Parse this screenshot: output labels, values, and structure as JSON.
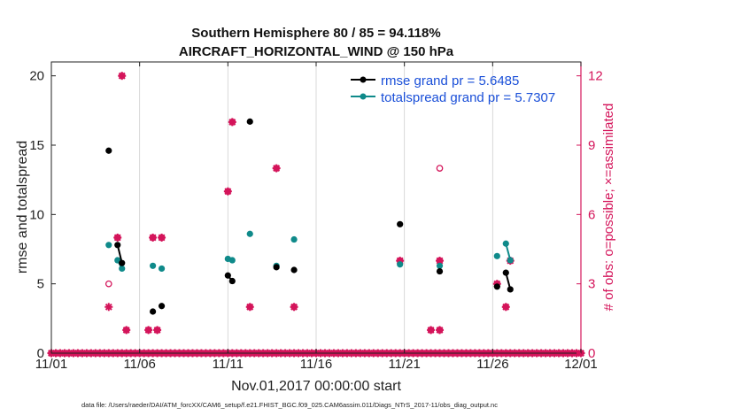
{
  "chart_data": {
    "type": "line",
    "title": [
      "Southern Hemisphere 80 / 85 = 94.118%",
      "AIRCRAFT_HORIZONTAL_WIND @ 150 hPa"
    ],
    "xlabel": "Nov.01,2017 00:00:00 start",
    "ylabel": "rmse and totalspread",
    "y2label": "# of obs: o=possible; ×=assimilated",
    "xlim": [
      0,
      30
    ],
    "ylim": [
      0,
      21
    ],
    "y2lim": [
      0,
      12.6
    ],
    "x_tick_values": [
      0,
      5,
      10,
      15,
      20,
      25,
      30
    ],
    "x_tick_labels": [
      "11/01",
      "11/06",
      "11/11",
      "11/16",
      "11/21",
      "11/26",
      "12/01"
    ],
    "y_ticks": [
      0,
      5,
      10,
      15,
      20
    ],
    "y2_ticks": [
      0,
      3,
      6,
      9,
      12
    ],
    "grid_x": true,
    "legend": {
      "placement": "top-right",
      "entries": [
        "rmse grand pr = 5.6485",
        "totalspread grand pr = 5.7307"
      ]
    },
    "footer": "data file: /Users/raeder/DAI/ATM_forcXX/CAM6_setup/f.e21.FHIST_BGC.f09_025.CAM6assim.011/Diags_NTrS_2017-11/obs_diag_output.nc",
    "colors": {
      "rmse": "#000000",
      "spread": "#0f8a8a",
      "obs": "#d4145a"
    },
    "series": [
      {
        "name": "rmse",
        "segments": [
          [
            [
              3.25,
              14.6
            ]
          ],
          [
            [
              3.75,
              7.8
            ],
            [
              4.0,
              6.5
            ]
          ],
          [
            [
              5.75,
              3.0
            ]
          ],
          [
            [
              6.25,
              3.4
            ]
          ],
          [
            [
              10.0,
              5.6
            ],
            [
              10.25,
              5.2
            ]
          ],
          [
            [
              11.25,
              16.7
            ]
          ],
          [
            [
              12.75,
              6.2
            ]
          ],
          [
            [
              13.75,
              6.0
            ]
          ],
          [
            [
              19.75,
              9.3
            ]
          ],
          [
            [
              22.0,
              5.9
            ]
          ],
          [
            [
              25.25,
              4.8
            ]
          ],
          [
            [
              25.75,
              5.8
            ],
            [
              26.0,
              4.6
            ]
          ]
        ]
      },
      {
        "name": "totalspread",
        "segments": [
          [
            [
              3.25,
              7.8
            ]
          ],
          [
            [
              3.75,
              6.7
            ],
            [
              4.0,
              6.1
            ]
          ],
          [
            [
              5.75,
              6.3
            ]
          ],
          [
            [
              6.25,
              6.1
            ]
          ],
          [
            [
              10.0,
              6.8
            ],
            [
              10.25,
              6.7
            ]
          ],
          [
            [
              11.25,
              8.6
            ]
          ],
          [
            [
              12.75,
              6.3
            ]
          ],
          [
            [
              13.75,
              8.2
            ]
          ],
          [
            [
              19.75,
              6.4
            ]
          ],
          [
            [
              22.0,
              6.3
            ]
          ],
          [
            [
              25.25,
              7.0
            ]
          ],
          [
            [
              25.75,
              7.9
            ],
            [
              26.0,
              6.7
            ]
          ]
        ]
      }
    ],
    "obs_possible": [
      [
        3.25,
        3
      ],
      [
        3.75,
        5
      ],
      [
        4.0,
        12
      ],
      [
        4.25,
        1
      ],
      [
        5.5,
        1
      ],
      [
        5.75,
        5
      ],
      [
        6.0,
        1
      ],
      [
        6.25,
        5
      ],
      [
        10.0,
        7
      ],
      [
        10.25,
        10
      ],
      [
        11.25,
        2
      ],
      [
        12.75,
        8
      ],
      [
        13.75,
        2
      ],
      [
        19.75,
        4
      ],
      [
        21.5,
        1
      ],
      [
        22.0,
        1
      ],
      [
        22.0,
        8
      ],
      [
        22.0,
        4
      ],
      [
        25.25,
        3
      ],
      [
        25.75,
        2
      ],
      [
        26.0,
        4
      ]
    ],
    "obs_assimilated": [
      [
        3.25,
        2
      ],
      [
        3.75,
        5
      ],
      [
        4.0,
        12
      ],
      [
        4.25,
        1
      ],
      [
        5.5,
        1
      ],
      [
        5.75,
        5
      ],
      [
        6.0,
        1
      ],
      [
        6.25,
        5
      ],
      [
        10.0,
        7
      ],
      [
        10.25,
        10
      ],
      [
        11.25,
        2
      ],
      [
        12.75,
        8
      ],
      [
        13.75,
        2
      ],
      [
        19.75,
        4
      ],
      [
        21.5,
        1
      ],
      [
        22.0,
        1
      ],
      [
        22.0,
        4
      ],
      [
        25.25,
        3
      ],
      [
        25.75,
        2
      ],
      [
        26.0,
        4
      ]
    ]
  }
}
